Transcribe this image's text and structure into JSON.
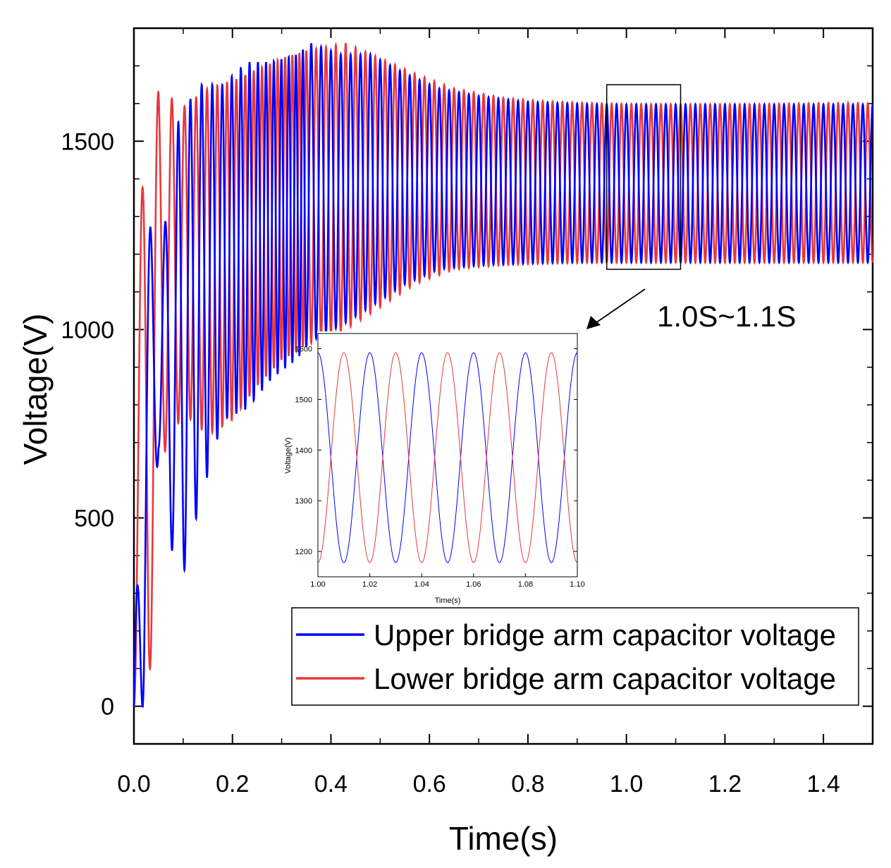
{
  "chart_data": [
    {
      "type": "line",
      "xlabel": "Time(s)",
      "ylabel": "Voltage(V)",
      "xlim": [
        0.0,
        1.5
      ],
      "ylim": [
        -100,
        1800
      ],
      "x_ticks": [
        "0.0",
        "0.2",
        "0.4",
        "0.6",
        "0.8",
        "1.0",
        "1.2",
        "1.4"
      ],
      "y_ticks": [
        "0",
        "500",
        "1000",
        "1500"
      ],
      "annotation": "1.0S~1.1S",
      "zoom_box": {
        "x_range": [
          0.96,
          1.11
        ],
        "y_range": [
          1160,
          1650
        ]
      },
      "legend_position": "bottom-right",
      "series": [
        {
          "name": "Upper bridge arm capacitor voltage",
          "color": "#0000ff",
          "envelope": {
            "t": [
              0.0,
              0.02,
              0.05,
              0.09,
              0.13,
              0.18,
              0.23,
              0.28,
              0.33,
              0.36,
              0.42,
              0.48,
              0.55,
              0.62,
              0.7,
              0.8,
              0.9,
              1.0,
              1.1,
              1.2,
              1.3,
              1.4,
              1.5
            ],
            "peak": [
              0.0,
              1370,
              1150,
              1550,
              1650,
              1650,
              1710,
              1710,
              1730,
              1760,
              1730,
              1730,
              1680,
              1640,
              1620,
              1605,
              1600,
              1598,
              1598,
              1598,
              1598,
              1598,
              1598
            ],
            "trough": [
              0.0,
              0,
              680,
              290,
              520,
              760,
              790,
              870,
              920,
              970,
              1010,
              1060,
              1120,
              1160,
              1170,
              1175,
              1178,
              1178,
              1178,
              1178,
              1178,
              1178,
              1178
            ]
          }
        },
        {
          "name": "Lower bridge arm capacitor voltage",
          "color": "#e8383d",
          "envelope": {
            "t": [
              0.0,
              0.03,
              0.05,
              0.1,
              0.15,
              0.2,
              0.25,
              0.3,
              0.35,
              0.43,
              0.5,
              0.57,
              0.65,
              0.75,
              0.85,
              0.95,
              1.05,
              1.15,
              1.25,
              1.35,
              1.45,
              1.5
            ],
            "peak": [
              1360,
              1390,
              1640,
              1590,
              1640,
              1660,
              1690,
              1720,
              1740,
              1760,
              1720,
              1680,
              1640,
              1615,
              1605,
              1600,
              1598,
              1598,
              1598,
              1600,
              1602,
              1600
            ],
            "trough": [
              0.0,
              0,
              640,
              780,
              720,
              760,
              850,
              920,
              960,
              1000,
              1060,
              1120,
              1160,
              1172,
              1176,
              1178,
              1178,
              1178,
              1178,
              1178,
              1178,
              1178
            ]
          }
        }
      ]
    },
    {
      "type": "line",
      "xlabel": "Time(s)",
      "ylabel": "Voltage(V)",
      "xlim": [
        1.0,
        1.1
      ],
      "ylim": [
        1150,
        1630
      ],
      "x_ticks": [
        "1.00",
        "1.02",
        "1.04",
        "1.06",
        "1.08",
        "1.10"
      ],
      "y_ticks": [
        "1200",
        "1300",
        "1400",
        "1500",
        "1600"
      ],
      "series": [
        {
          "name": "Upper bridge arm capacitor voltage",
          "color": "#0000ff",
          "period": 0.02,
          "center": 1385,
          "amplitude": 207,
          "peak_times": [
            1.0,
            1.02,
            1.04,
            1.06,
            1.08,
            1.1
          ],
          "peak_values": [
            1595,
            1595,
            1590,
            1585,
            1590,
            1595
          ]
        },
        {
          "name": "Lower bridge arm capacitor voltage",
          "color": "#e8383d",
          "period": 0.02,
          "center": 1385,
          "amplitude": 207,
          "peak_times": [
            1.01,
            1.03,
            1.05,
            1.07,
            1.09
          ],
          "peak_values": [
            1590,
            1592,
            1592,
            1592,
            1588
          ]
        }
      ]
    }
  ]
}
